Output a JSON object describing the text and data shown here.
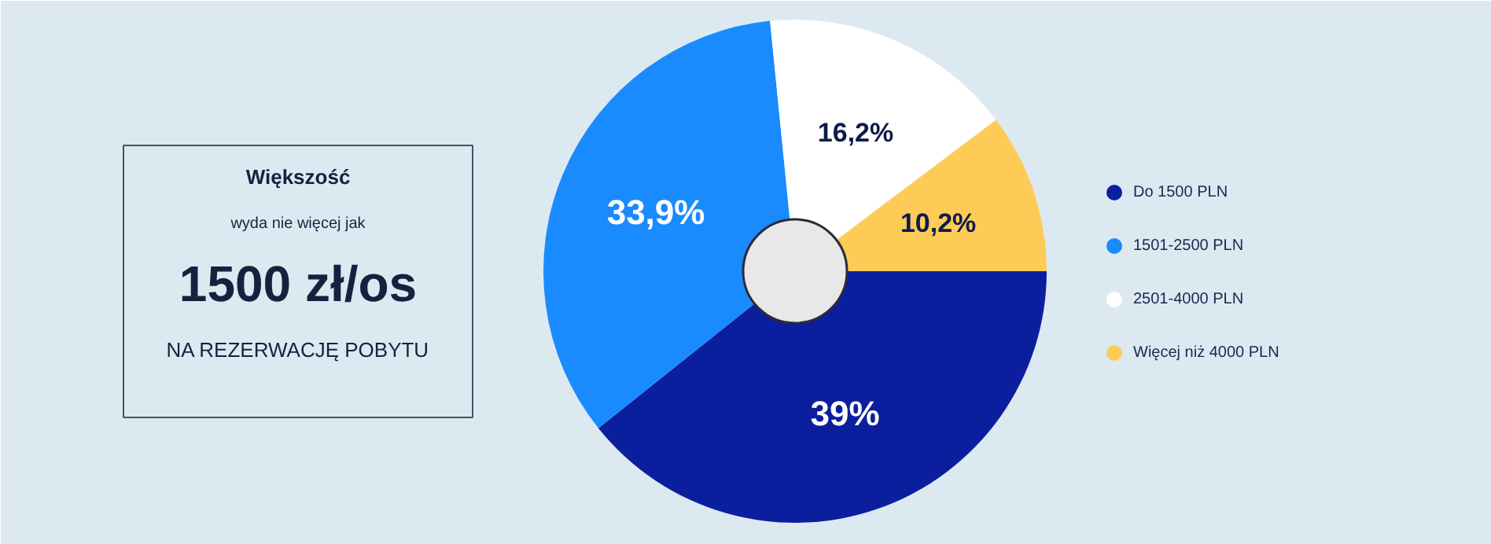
{
  "chart_data": {
    "type": "donut",
    "categories": [
      "Do 1500 PLN",
      "1501-2500 PLN",
      "2501-4000 PLN",
      "Więcej niż 4000 PLN"
    ],
    "values": [
      39,
      33.9,
      16.2,
      10.2
    ],
    "colors": [
      "#0b1f9e",
      "#1a8bff",
      "#ffffff",
      "#ffcb57"
    ],
    "value_labels": [
      "39%",
      "33,9%",
      "16,2%",
      "10,2%"
    ],
    "legend": "right",
    "annotations": [
      "Większość",
      "wyda nie więcej jak",
      "1500 zł/os",
      "NA REZERWACJĘ POBYTU"
    ]
  }
}
